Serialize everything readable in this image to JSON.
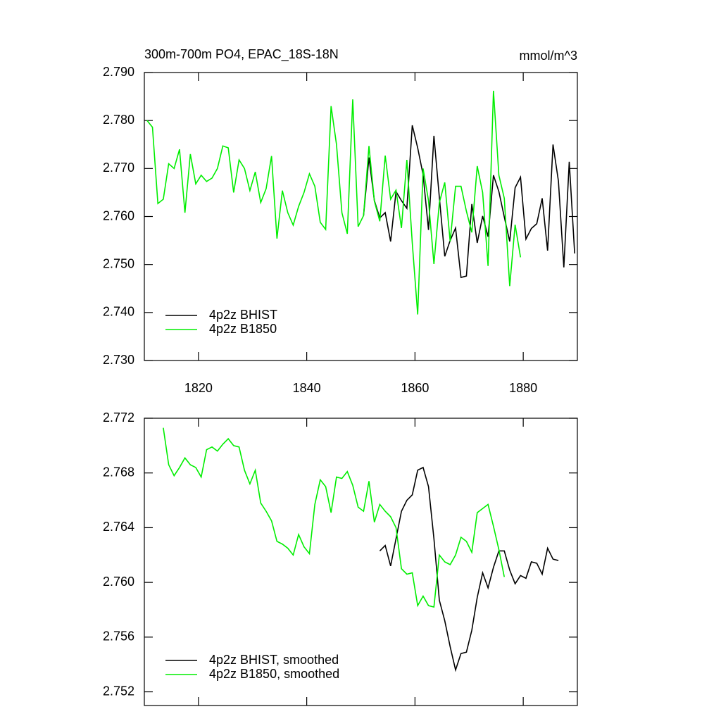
{
  "chart_data": [
    {
      "type": "line",
      "title": "300m-700m PO4, EPAC_18S-18N",
      "units": "mmol/m^3",
      "xlim": [
        1810,
        1890
      ],
      "xticks": [
        1820,
        1840,
        1860,
        1880
      ],
      "ylim": [
        2.73,
        2.79
      ],
      "yticks": [
        {
          "value": 2.79,
          "label": "2.790"
        },
        {
          "value": 2.78,
          "label": "2.780"
        },
        {
          "value": 2.77,
          "label": "2.770"
        },
        {
          "value": 2.76,
          "label": "2.760"
        },
        {
          "value": 2.75,
          "label": "2.750"
        },
        {
          "value": 2.74,
          "label": "2.740"
        },
        {
          "value": 2.73,
          "label": "2.730"
        }
      ],
      "legend": "lower left",
      "series": [
        {
          "name": "4p2z BHIST",
          "color": "#000000",
          "x": [
            1850.5,
            1851.5,
            1852.5,
            1853.5,
            1854.5,
            1855.5,
            1856.5,
            1857.5,
            1858.5,
            1859.5,
            1860.5,
            1861.5,
            1862.5,
            1863.5,
            1864.5,
            1865.5,
            1866.5,
            1867.5,
            1868.5,
            1869.5,
            1870.5,
            1871.5,
            1872.5,
            1873.5,
            1874.5,
            1875.5,
            1876.5,
            1877.5,
            1878.5,
            1879.5,
            1880.5,
            1881.5,
            1882.5,
            1883.5,
            1884.5,
            1885.5,
            1886.5,
            1887.5,
            1888.5,
            1889.5
          ],
          "values": [
            2.7602,
            2.7723,
            2.7633,
            2.7597,
            2.7608,
            2.7548,
            2.7652,
            2.7633,
            2.7617,
            2.779,
            2.7743,
            2.7687,
            2.7572,
            2.7768,
            2.764,
            2.7517,
            2.755,
            2.7576,
            2.7473,
            2.7476,
            2.7626,
            2.7545,
            2.7601,
            2.7558,
            2.7686,
            2.7652,
            2.7599,
            2.7548,
            2.766,
            2.7682,
            2.7553,
            2.7575,
            2.7585,
            2.7638,
            2.7529,
            2.775,
            2.7674,
            2.7494,
            2.7714,
            2.7523
          ]
        },
        {
          "name": "4p2z B1850",
          "color": "#00ee00",
          "x": [
            1810.5,
            1811.5,
            1812.5,
            1813.5,
            1814.5,
            1815.5,
            1816.5,
            1817.5,
            1818.5,
            1819.5,
            1820.5,
            1821.5,
            1822.5,
            1823.5,
            1824.5,
            1825.5,
            1826.5,
            1827.5,
            1828.5,
            1829.5,
            1830.5,
            1831.5,
            1832.5,
            1833.5,
            1834.5,
            1835.5,
            1836.5,
            1837.5,
            1838.5,
            1839.5,
            1840.5,
            1841.5,
            1842.5,
            1843.5,
            1844.5,
            1845.5,
            1846.5,
            1847.5,
            1848.5,
            1849.5,
            1850.5,
            1851.5,
            1852.5,
            1853.5,
            1854.5,
            1855.5,
            1856.5,
            1857.5,
            1858.5,
            1859.5,
            1860.5,
            1861.5,
            1862.5,
            1863.5,
            1864.5,
            1865.5,
            1866.5,
            1867.5,
            1868.5,
            1869.5,
            1870.5,
            1871.5,
            1872.5,
            1873.5,
            1874.5,
            1875.5,
            1876.5,
            1877.5,
            1878.5,
            1879.5
          ],
          "values": [
            2.78,
            2.7786,
            2.7627,
            2.7636,
            2.771,
            2.77,
            2.774,
            2.7608,
            2.773,
            2.7668,
            2.7686,
            2.7673,
            2.768,
            2.77,
            2.7747,
            2.7743,
            2.765,
            2.7718,
            2.77,
            2.7654,
            2.7693,
            2.7629,
            2.7658,
            2.7726,
            2.7554,
            2.7654,
            2.7608,
            2.7582,
            2.7621,
            2.765,
            2.7689,
            2.7663,
            2.7588,
            2.7573,
            2.783,
            2.775,
            2.7608,
            2.7564,
            2.7844,
            2.7579,
            2.7602,
            2.7747,
            2.7632,
            2.759,
            2.7727,
            2.7636,
            2.7655,
            2.7576,
            2.7718,
            2.7545,
            2.7396,
            2.77,
            2.7633,
            2.7501,
            2.7629,
            2.7671,
            2.7548,
            2.7663,
            2.7663,
            2.7611,
            2.7567,
            2.7705,
            2.765,
            2.7497,
            2.7862,
            2.7686,
            2.7638,
            2.7455,
            2.7583,
            2.7515
          ]
        }
      ]
    },
    {
      "type": "line",
      "xlim": [
        1810,
        1890
      ],
      "xticks": [
        1820,
        1840,
        1860,
        1880
      ],
      "ylim": [
        2.751,
        2.772
      ],
      "yticks": [
        2.772,
        2.768,
        2.764,
        {
          "value": 2.76,
          "label": "2.760"
        },
        2.756,
        2.752
      ],
      "legend": "lower left",
      "series": [
        {
          "name": "4p2z BHIST, smoothed",
          "color": "#000000",
          "x": [
            1853.5,
            1854.5,
            1855.5,
            1856.5,
            1857.5,
            1858.5,
            1859.5,
            1860.5,
            1861.5,
            1862.5,
            1863.5,
            1864.5,
            1865.5,
            1866.5,
            1867.5,
            1868.5,
            1869.5,
            1870.5,
            1871.5,
            1872.5,
            1873.5,
            1874.5,
            1875.5,
            1876.5,
            1877.5,
            1878.5,
            1879.5,
            1880.5,
            1881.5,
            1882.5,
            1883.5,
            1884.5,
            1885.5,
            1886.5
          ],
          "values": [
            2.7623,
            2.7627,
            2.7612,
            2.7632,
            2.7652,
            2.766,
            2.7664,
            2.7682,
            2.7684,
            2.767,
            2.7632,
            2.7587,
            2.7572,
            2.7553,
            2.7536,
            2.7548,
            2.7549,
            2.7565,
            2.7589,
            2.7607,
            2.7596,
            2.7611,
            2.7623,
            2.7623,
            2.7609,
            2.7599,
            2.7605,
            2.7603,
            2.7615,
            2.7614,
            2.7606,
            2.7625,
            2.7617,
            2.7616
          ]
        },
        {
          "name": "4p2z B1850, smoothed",
          "color": "#00ee00",
          "x": [
            1813.5,
            1814.5,
            1815.5,
            1816.5,
            1817.5,
            1818.5,
            1819.5,
            1820.5,
            1821.5,
            1822.5,
            1823.5,
            1824.5,
            1825.5,
            1826.5,
            1827.5,
            1828.5,
            1829.5,
            1830.5,
            1831.5,
            1832.5,
            1833.5,
            1834.5,
            1835.5,
            1836.5,
            1837.5,
            1838.5,
            1839.5,
            1840.5,
            1841.5,
            1842.5,
            1843.5,
            1844.5,
            1845.5,
            1846.5,
            1847.5,
            1848.5,
            1849.5,
            1850.5,
            1851.5,
            1852.5,
            1853.5,
            1854.5,
            1855.5,
            1856.5,
            1857.5,
            1858.5,
            1859.5,
            1860.5,
            1861.5,
            1862.5,
            1863.5,
            1864.5,
            1865.5,
            1866.5,
            1867.5,
            1868.5,
            1869.5,
            1870.5,
            1871.5,
            1872.5,
            1873.5,
            1874.5,
            1875.5,
            1876.5
          ],
          "values": [
            2.7713,
            2.7686,
            2.7678,
            2.7684,
            2.7691,
            2.7686,
            2.7684,
            2.7677,
            2.7697,
            2.7699,
            2.7696,
            2.7701,
            2.7705,
            2.77,
            2.7699,
            2.7682,
            2.7672,
            2.7682,
            2.7658,
            2.7652,
            2.7645,
            2.763,
            2.7628,
            2.7625,
            2.762,
            2.7635,
            2.7626,
            2.7621,
            2.7657,
            2.7675,
            2.767,
            2.7651,
            2.7677,
            2.7676,
            2.7681,
            2.7671,
            2.7655,
            2.7652,
            2.7674,
            2.7644,
            2.7657,
            2.7652,
            2.7648,
            2.764,
            2.761,
            2.7606,
            2.7607,
            2.7583,
            2.759,
            2.7583,
            2.7582,
            2.762,
            2.7615,
            2.7613,
            2.762,
            2.7633,
            2.763,
            2.7622,
            2.7651,
            2.7654,
            2.7657,
            2.7641,
            2.7624,
            2.7604
          ]
        }
      ]
    }
  ]
}
